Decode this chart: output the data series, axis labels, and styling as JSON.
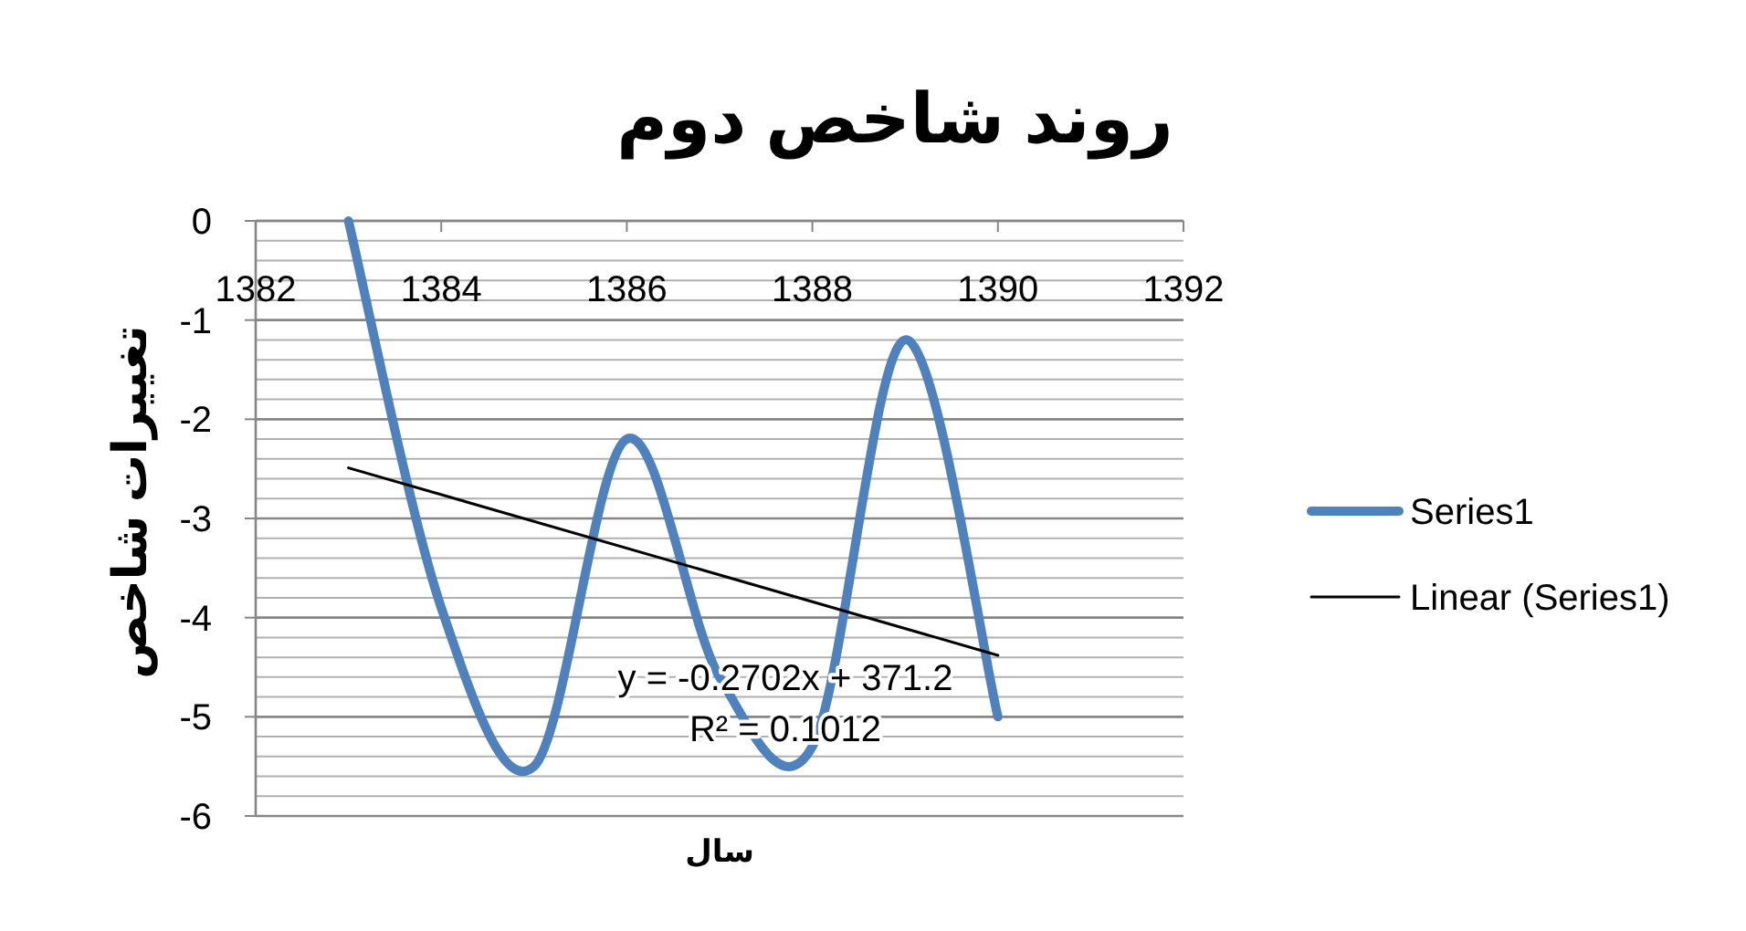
{
  "chart_data": {
    "type": "line",
    "title": "روند شاخص دوم",
    "xlabel": "سال",
    "ylabel": "تغییرات شاخص",
    "x": [
      1383,
      1384,
      1385,
      1386,
      1387,
      1388,
      1389,
      1390
    ],
    "series": [
      {
        "name": "Series1",
        "color": "#4f81bd",
        "values": [
          0,
          -3.9,
          -5.5,
          -2.2,
          -4.6,
          -5.3,
          -1.2,
          -5
        ]
      },
      {
        "name": "Linear (Series1)",
        "type": "line",
        "color": "#000000",
        "x": [
          1383,
          1390
        ],
        "values": [
          -2.49,
          -4.38
        ]
      }
    ],
    "annotations": [
      "y = -0.2702x + 371.2",
      "R² = 0.1012"
    ],
    "xlim": [
      1382,
      1392
    ],
    "xticks": [
      1382,
      1384,
      1386,
      1388,
      1390,
      1392
    ],
    "ylim": [
      -6,
      0
    ],
    "yticks": [
      0,
      -1,
      -2,
      -3,
      -4,
      -5,
      -6
    ],
    "grid": "y",
    "legend": "right",
    "marker": "none",
    "line_style": "solid"
  }
}
